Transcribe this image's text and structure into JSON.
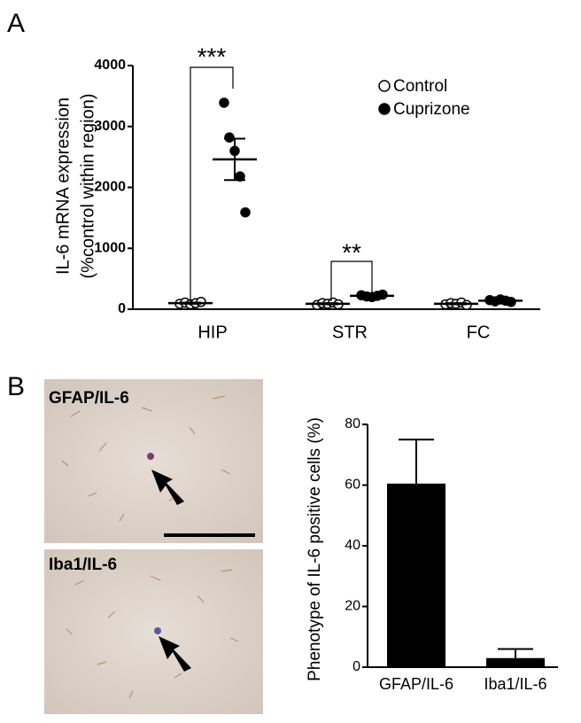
{
  "chart_data": [
    {
      "type": "dotplot",
      "panel_label": "A",
      "y_label": [
        "IL-6 mRNA expression",
        "(%control within region)"
      ],
      "categories": [
        "HIP",
        "STR",
        "FC"
      ],
      "series": [
        {
          "name": "Control",
          "color": "#ffffff",
          "values": [
            [
              90,
              110,
              80,
              100,
              120
            ],
            [
              70,
              100,
              90,
              110,
              80
            ],
            [
              80,
              100,
              90,
              110,
              70
            ]
          ],
          "means": [
            100,
            90,
            90
          ],
          "sems": [
            10,
            10,
            10
          ]
        },
        {
          "name": "Cuprizone",
          "color": "#000000",
          "values": [
            [
              3390,
              2820,
              2600,
              2180,
              1590
            ],
            [
              230,
              210,
              200,
              220,
              240
            ],
            [
              150,
              130,
              160,
              140,
              120
            ]
          ],
          "means": [
            2460,
            220,
            140
          ],
          "sems": [
            340,
            10,
            10
          ]
        }
      ],
      "annotations": [
        "***",
        "**"
      ],
      "ylim": [
        0,
        4000
      ],
      "yticks": [
        0,
        1000,
        2000,
        3000,
        4000
      ]
    },
    {
      "type": "bar",
      "panel_label": "B",
      "y_label": "Phenotype of IL-6 positive cells (%)",
      "categories": [
        "GFAP/IL-6",
        "Iba1/IL-6"
      ],
      "values": [
        60.5,
        3
      ],
      "errors": [
        14.5,
        3
      ],
      "color": "#000000",
      "ylim": [
        0,
        80
      ],
      "yticks": [
        0,
        20,
        40,
        60,
        80
      ]
    }
  ],
  "images": [
    {
      "label": "GFAP/IL-6"
    },
    {
      "label": "Iba1/IL-6"
    }
  ]
}
